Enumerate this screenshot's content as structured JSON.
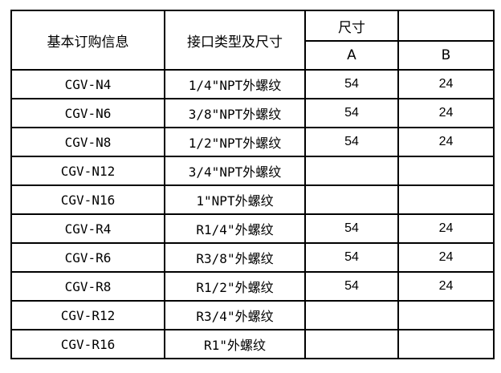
{
  "header": {
    "col1": "基本订购信息",
    "col2": "接口类型及尺寸",
    "dimension_group": "尺寸",
    "dim_a": "A",
    "dim_b": "B"
  },
  "rows": [
    {
      "model": "CGV-N4",
      "port": "1/4\"NPT外螺纹",
      "a": "54",
      "b": "24"
    },
    {
      "model": "CGV-N6",
      "port": "3/8\"NPT外螺纹",
      "a": "54",
      "b": "24"
    },
    {
      "model": "CGV-N8",
      "port": "1/2\"NPT外螺纹",
      "a": "54",
      "b": "24"
    },
    {
      "model": "CGV-N12",
      "port": "3/4\"NPT外螺纹",
      "a": "",
      "b": ""
    },
    {
      "model": "CGV-N16",
      "port": "1\"NPT外螺纹",
      "a": "",
      "b": ""
    },
    {
      "model": "CGV-R4",
      "port": "R1/4\"外螺纹",
      "a": "54",
      "b": "24"
    },
    {
      "model": "CGV-R6",
      "port": "R3/8\"外螺纹",
      "a": "54",
      "b": "24"
    },
    {
      "model": "CGV-R8",
      "port": "R1/2\"外螺纹",
      "a": "54",
      "b": "24"
    },
    {
      "model": "CGV-R12",
      "port": "R3/4\"外螺纹",
      "a": "",
      "b": ""
    },
    {
      "model": "CGV-R16",
      "port": "R1\"外螺纹",
      "a": "",
      "b": ""
    }
  ]
}
